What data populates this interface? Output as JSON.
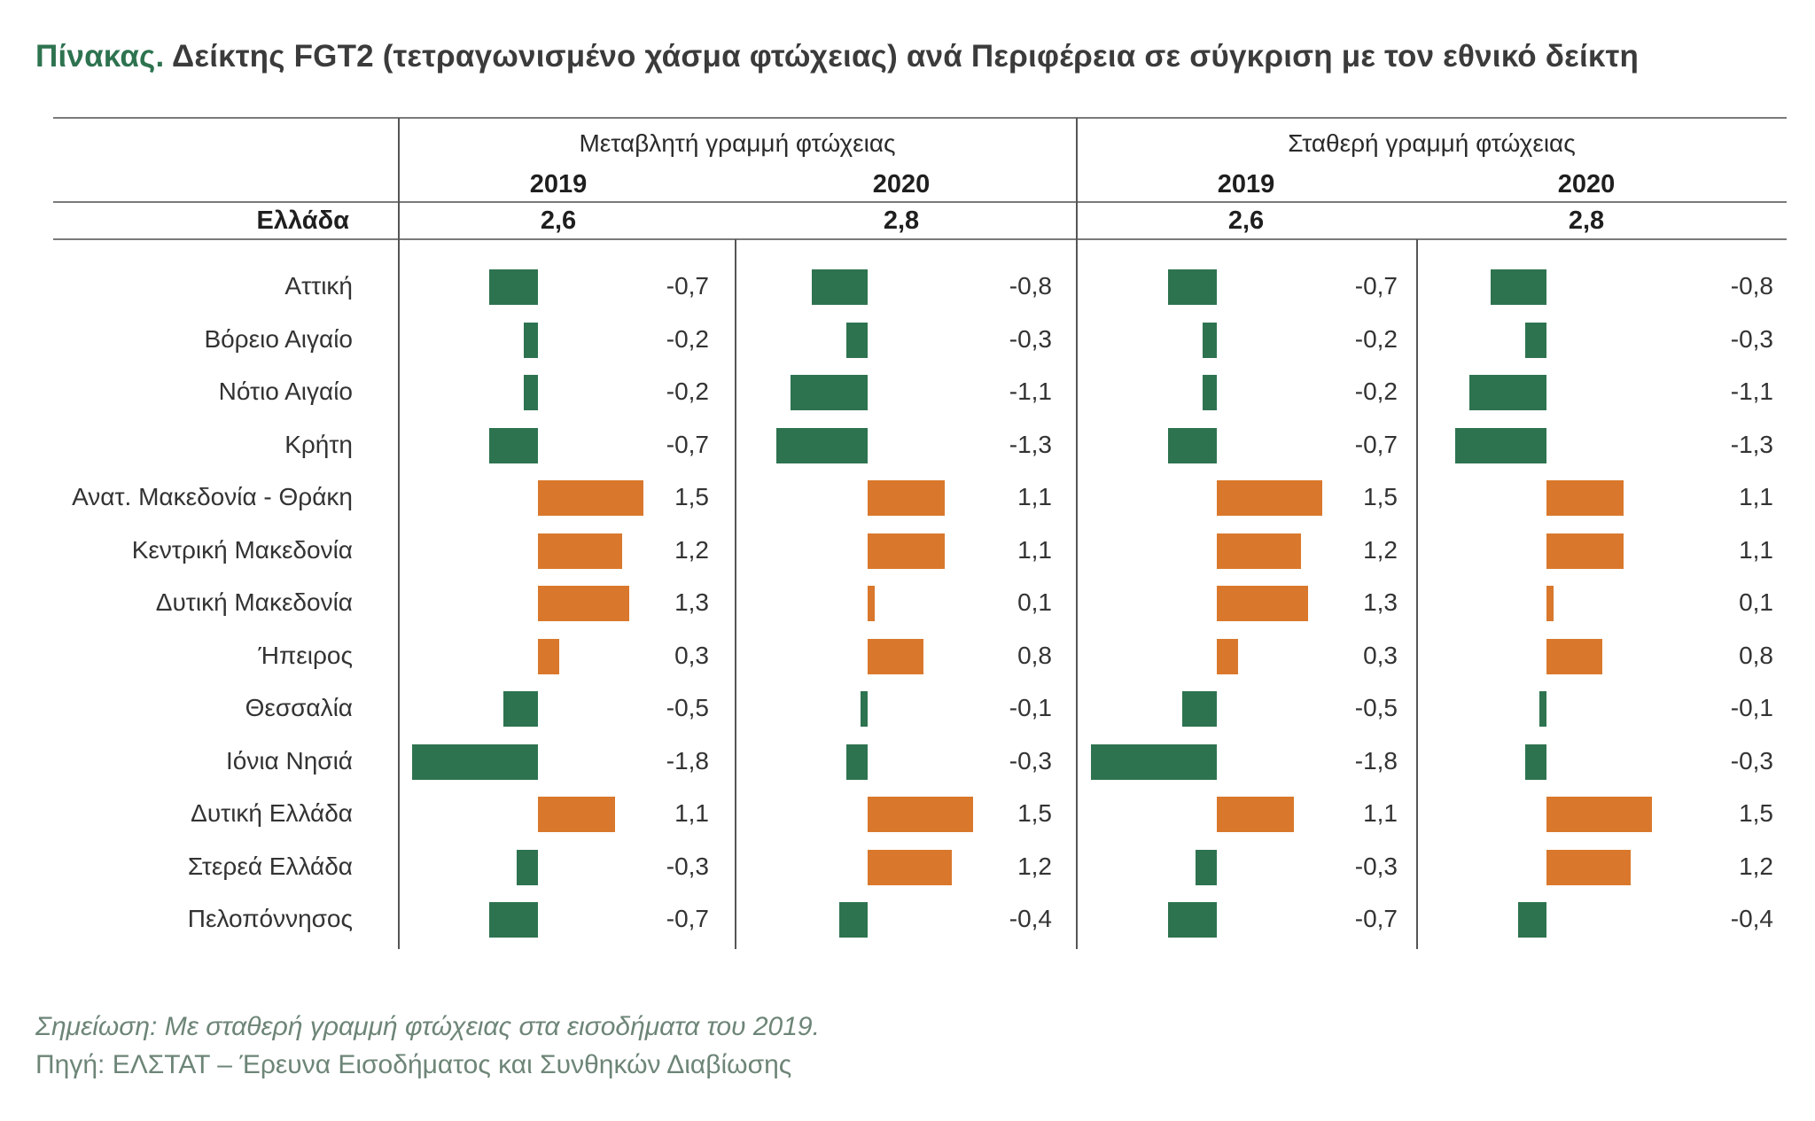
{
  "title": {
    "lead": "Πίνακας.",
    "text": "Δείκτης FGT2 (τετραγωνισμένο χάσμα φτώχειας) ανά Περιφέρεια σε σύγκριση με τον εθνικό δείκτη"
  },
  "colors": {
    "negative": "#2e7350",
    "positive": "#d9782c",
    "accent": "#2e7350"
  },
  "national": {
    "label": "Ελλάδα",
    "values": [
      "2,6",
      "2,8",
      "2,6",
      "2,8"
    ]
  },
  "notes": {
    "note": "Σημείωση: Με σταθερή γραμμή φτώχειας στα εισοδήματα του 2019.",
    "source": "Πηγή: ΕΛΣΤΑΤ – Έρευνα Εισοδήματος και Συνθηκών Διαβίωσης"
  },
  "chart_data": {
    "type": "bar",
    "orientation": "horizontal",
    "title": "Δείκτης FGT2 (τετραγωνισμένο χάσμα φτώχειας) ανά Περιφέρεια σε σύγκριση με τον εθνικό δείκτη",
    "groups": [
      {
        "name": "Μεταβλητή γραμμή φτώχειας",
        "years": [
          "2019",
          "2020"
        ]
      },
      {
        "name": "Σταθερή γραμμή φτώχειας",
        "years": [
          "2019",
          "2020"
        ]
      }
    ],
    "categories": [
      "Αττική",
      "Βόρειο Αιγαίο",
      "Νότιο Αιγαίο",
      "Κρήτη",
      "Ανατ. Μακεδονία - Θράκη",
      "Κεντρική Μακεδονία",
      "Δυτική Μακεδονία",
      "Ήπειρος",
      "Θεσσαλία",
      "Ιόνια Νησιά",
      "Δυτική Ελλάδα",
      "Στερεά Ελλάδα",
      "Πελοπόννησος"
    ],
    "series": [
      {
        "name": "Μεταβλητή γραμμή φτώχειας 2019",
        "values": [
          -0.7,
          -0.2,
          -0.2,
          -0.7,
          1.5,
          1.2,
          1.3,
          0.3,
          -0.5,
          -1.8,
          1.1,
          -0.3,
          -0.7
        ],
        "labels": [
          "-0,7",
          "-0,2",
          "-0,2",
          "-0,7",
          "1,5",
          "1,2",
          "1,3",
          "0,3",
          "-0,5",
          "-1,8",
          "1,1",
          "-0,3",
          "-0,7"
        ]
      },
      {
        "name": "Μεταβλητή γραμμή φτώχειας 2020",
        "values": [
          -0.8,
          -0.3,
          -1.1,
          -1.3,
          1.1,
          1.1,
          0.1,
          0.8,
          -0.1,
          -0.3,
          1.5,
          1.2,
          -0.4
        ],
        "labels": [
          "-0,8",
          "-0,3",
          "-1,1",
          "-1,3",
          "1,1",
          "1,1",
          "0,1",
          "0,8",
          "-0,1",
          "-0,3",
          "1,5",
          "1,2",
          "-0,4"
        ]
      },
      {
        "name": "Σταθερή γραμμή φτώχειας 2019",
        "values": [
          -0.7,
          -0.2,
          -0.2,
          -0.7,
          1.5,
          1.2,
          1.3,
          0.3,
          -0.5,
          -1.8,
          1.1,
          -0.3,
          -0.7
        ],
        "labels": [
          "-0,7",
          "-0,2",
          "-0,2",
          "-0,7",
          "1,5",
          "1,2",
          "1,3",
          "0,3",
          "-0,5",
          "-1,8",
          "1,1",
          "-0,3",
          "-0,7"
        ]
      },
      {
        "name": "Σταθερή γραμμή φτώχειας 2020",
        "values": [
          -0.8,
          -0.3,
          -1.1,
          -1.3,
          1.1,
          1.1,
          0.1,
          0.8,
          -0.1,
          -0.3,
          1.5,
          1.2,
          -0.4
        ],
        "labels": [
          "-0,8",
          "-0,3",
          "-1,1",
          "-1,3",
          "1,1",
          "1,1",
          "0,1",
          "0,8",
          "-0,1",
          "-0,3",
          "1,5",
          "1,2",
          "-0,4"
        ]
      }
    ]
  }
}
